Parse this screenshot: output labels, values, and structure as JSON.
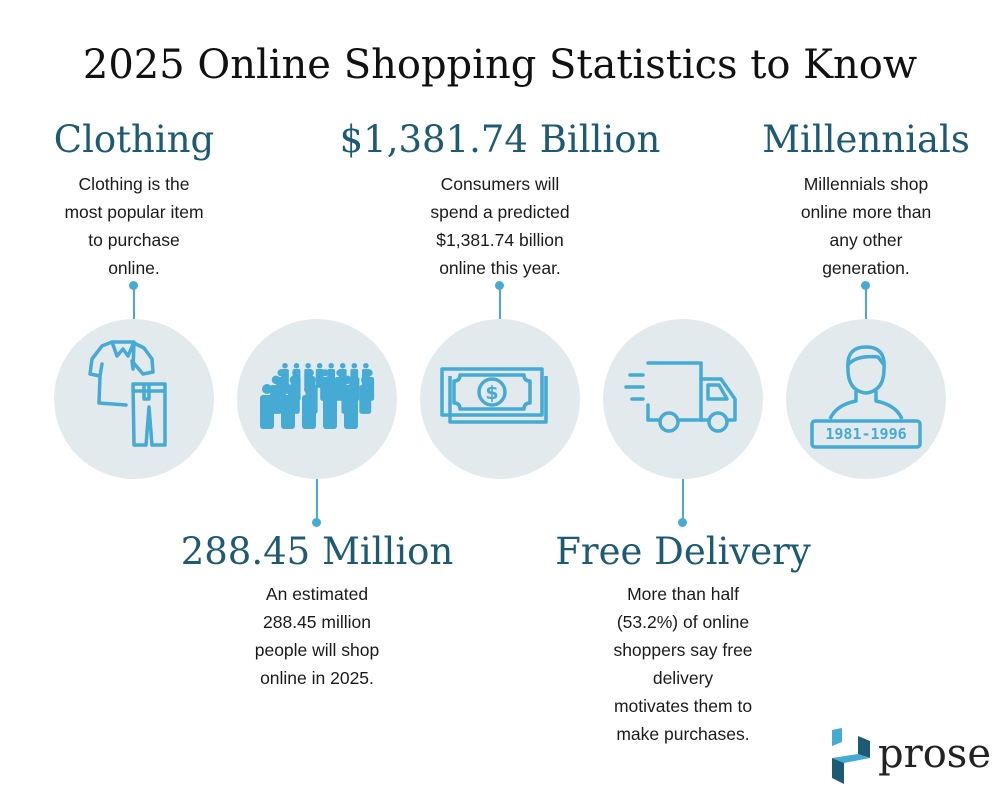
{
  "title": "2025 Online Shopping Statistics to Know",
  "colors": {
    "heading": "#1d5a73",
    "accent": "#45aad4",
    "circle": "#e3eaee"
  },
  "stats": [
    {
      "heading": "Clothing",
      "lines": [
        "Clothing is the",
        "most popular item",
        "to purchase",
        "online."
      ],
      "icon": "clothing-icon"
    },
    {
      "heading": "288.45 Million",
      "lines": [
        "An estimated",
        "288.45 million",
        "people will shop",
        "online in 2025."
      ],
      "icon": "crowd-icon"
    },
    {
      "heading": "$1,381.74 Billion",
      "lines": [
        "Consumers will",
        "spend a predicted",
        "$1,381.74 billion",
        "online this year."
      ],
      "icon": "money-icon"
    },
    {
      "heading": "Free Delivery",
      "lines": [
        "More than half",
        "(53.2%) of online",
        "shoppers say free",
        "delivery",
        "motivates them to",
        "make purchases."
      ],
      "icon": "truck-icon"
    },
    {
      "heading": "Millennials",
      "lines": [
        "Millennials shop",
        "online more than",
        "any other",
        "generation."
      ],
      "icon": "millennial-icon",
      "badge": "1981-1996"
    }
  ],
  "logo": {
    "text": "prose"
  }
}
